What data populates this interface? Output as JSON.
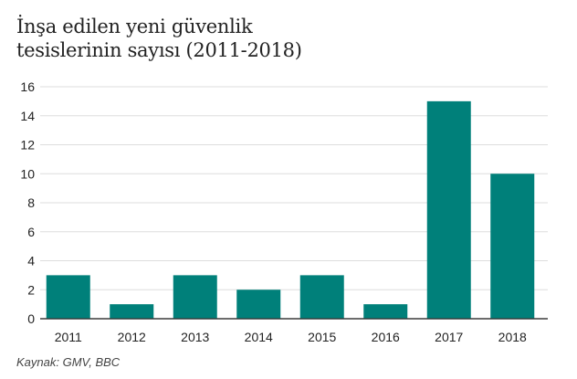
{
  "chart_data": {
    "type": "bar",
    "title_lines": [
      "İnşa edilen yeni güvenlik",
      "tesislerinin sayısı (2011-2018)"
    ],
    "categories": [
      "2011",
      "2012",
      "2013",
      "2014",
      "2015",
      "2016",
      "2017",
      "2018"
    ],
    "values": [
      3,
      1,
      3,
      2,
      3,
      1,
      15,
      10
    ],
    "yticks": [
      0,
      2,
      4,
      6,
      8,
      10,
      12,
      14,
      16
    ],
    "ylim": [
      0,
      16
    ],
    "xlabel": "",
    "ylabel": "",
    "grid": true,
    "bar_color": "#00807a",
    "gridline_color": "#dddddd",
    "axis_color": "#333333"
  },
  "source": "Kaynak: GMV, BBC"
}
